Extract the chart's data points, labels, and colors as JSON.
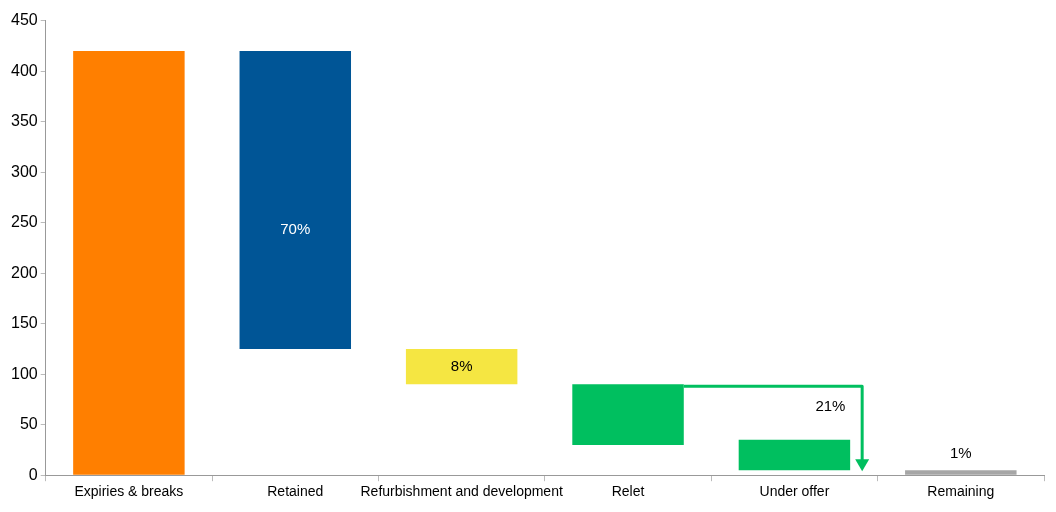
{
  "chart_data": {
    "type": "bar",
    "categories": [
      "Expiries & breaks",
      "Retained",
      "Refurbishment and development",
      "Relet",
      "Under offer",
      "Remaining"
    ],
    "values": [
      420,
      295,
      35,
      60,
      30,
      5
    ],
    "base": [
      0,
      125,
      90,
      30,
      5,
      0
    ],
    "colors": [
      "#ff7f00",
      "#005596",
      "#f5e642",
      "#00bf5f",
      "#00bf5f",
      "#a6a6a6"
    ],
    "ylim": [
      0,
      450
    ],
    "yticks": [
      0,
      50,
      100,
      150,
      200,
      250,
      300,
      350,
      400,
      450
    ],
    "grid": false,
    "legend": false,
    "annotations": [
      "70%",
      "8%",
      "21%",
      "1%"
    ]
  }
}
